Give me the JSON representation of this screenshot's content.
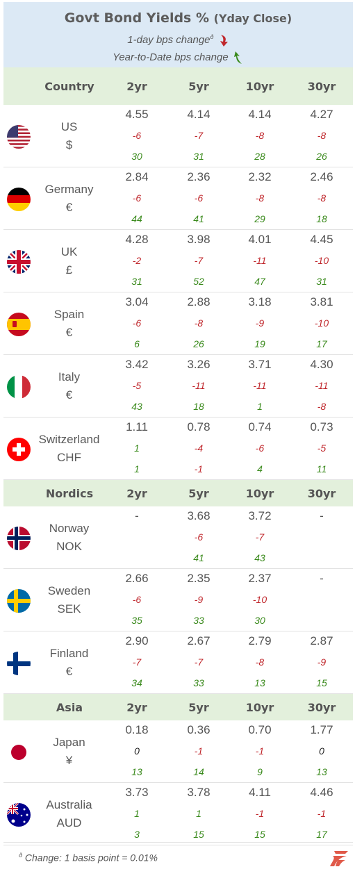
{
  "header": {
    "title": "Govt Bond Yields %",
    "title_paren": "(Yday Close)",
    "legend_day": "1-day bps change",
    "legend_sup": "ð",
    "legend_ytd": "Year-to-Date bps change"
  },
  "columns": [
    "2yr",
    "5yr",
    "10yr",
    "30yr"
  ],
  "sections": [
    {
      "label": "Country",
      "rows": [
        {
          "name": "US",
          "currency": "$",
          "flag": "us-flag-icon",
          "yields": [
            "4.55",
            "4.14",
            "4.14",
            "4.27"
          ],
          "day": [
            "-6",
            "-7",
            "-8",
            "-8"
          ],
          "ytd": [
            "30",
            "31",
            "28",
            "26"
          ]
        },
        {
          "name": "Germany",
          "currency": "€",
          "flag": "germany-flag-icon",
          "yields": [
            "2.84",
            "2.36",
            "2.32",
            "2.46"
          ],
          "day": [
            "-6",
            "-6",
            "-8",
            "-8"
          ],
          "ytd": [
            "44",
            "41",
            "29",
            "18"
          ]
        },
        {
          "name": "UK",
          "currency": "£",
          "flag": "uk-flag-icon",
          "yields": [
            "4.28",
            "3.98",
            "4.01",
            "4.45"
          ],
          "day": [
            "-2",
            "-7",
            "-11",
            "-10"
          ],
          "ytd": [
            "31",
            "52",
            "47",
            "31"
          ]
        },
        {
          "name": "Spain",
          "currency": "€",
          "flag": "spain-flag-icon",
          "yields": [
            "3.04",
            "2.88",
            "3.18",
            "3.81"
          ],
          "day": [
            "-6",
            "-8",
            "-9",
            "-10"
          ],
          "ytd": [
            "6",
            "26",
            "19",
            "17"
          ]
        },
        {
          "name": "Italy",
          "currency": "€",
          "flag": "italy-flag-icon",
          "yields": [
            "3.42",
            "3.26",
            "3.71",
            "4.30"
          ],
          "day": [
            "-5",
            "-11",
            "-11",
            "-11"
          ],
          "ytd": [
            "43",
            "18",
            "1",
            "-8"
          ]
        },
        {
          "name": "Switzerland",
          "currency": "CHF",
          "flag": "switzerland-flag-icon",
          "yields": [
            "1.11",
            "0.78",
            "0.74",
            "0.73"
          ],
          "day": [
            "1",
            "-4",
            "-6",
            "-5"
          ],
          "ytd": [
            "1",
            "-1",
            "4",
            "11"
          ]
        }
      ]
    },
    {
      "label": "Nordics",
      "rows": [
        {
          "name": "Norway",
          "currency": "NOK",
          "flag": "norway-flag-icon",
          "yields": [
            "-",
            "3.68",
            "3.72",
            "-"
          ],
          "day": [
            "",
            "-6",
            "-7",
            ""
          ],
          "ytd": [
            "",
            "41",
            "43",
            ""
          ]
        },
        {
          "name": "Sweden",
          "currency": "SEK",
          "flag": "sweden-flag-icon",
          "yields": [
            "2.66",
            "2.35",
            "2.37",
            "-"
          ],
          "day": [
            "-6",
            "-9",
            "-10",
            ""
          ],
          "ytd": [
            "35",
            "33",
            "30",
            ""
          ]
        },
        {
          "name": "Finland",
          "currency": "€",
          "flag": "finland-flag-icon",
          "yields": [
            "2.90",
            "2.67",
            "2.79",
            "2.87"
          ],
          "day": [
            "-7",
            "-7",
            "-8",
            "-9"
          ],
          "ytd": [
            "34",
            "33",
            "13",
            "15"
          ]
        }
      ]
    },
    {
      "label": "Asia",
      "rows": [
        {
          "name": "Japan",
          "currency": "¥",
          "flag": "japan-flag-icon",
          "yields": [
            "0.18",
            "0.36",
            "0.70",
            "1.77"
          ],
          "day": [
            "0",
            "-1",
            "-1",
            "0"
          ],
          "ytd": [
            "13",
            "14",
            "9",
            "13"
          ]
        },
        {
          "name": "Australia",
          "currency": "AUD",
          "flag": "australia-flag-icon",
          "yields": [
            "3.73",
            "3.78",
            "4.11",
            "4.46"
          ],
          "day": [
            "1",
            "1",
            "-1",
            "-1"
          ],
          "ytd": [
            "3",
            "15",
            "15",
            "17"
          ]
        }
      ]
    }
  ],
  "footer": {
    "sup": "ð",
    "note": "Change: 1 basis point = 0.01%",
    "logo": "brand-logo-icon"
  },
  "colors": {
    "header_bg": "#dce9f5",
    "section_bg": "#e3f0dc",
    "negative": "#c0282d",
    "positive": "#3a8a1c",
    "zero": "#222222"
  }
}
